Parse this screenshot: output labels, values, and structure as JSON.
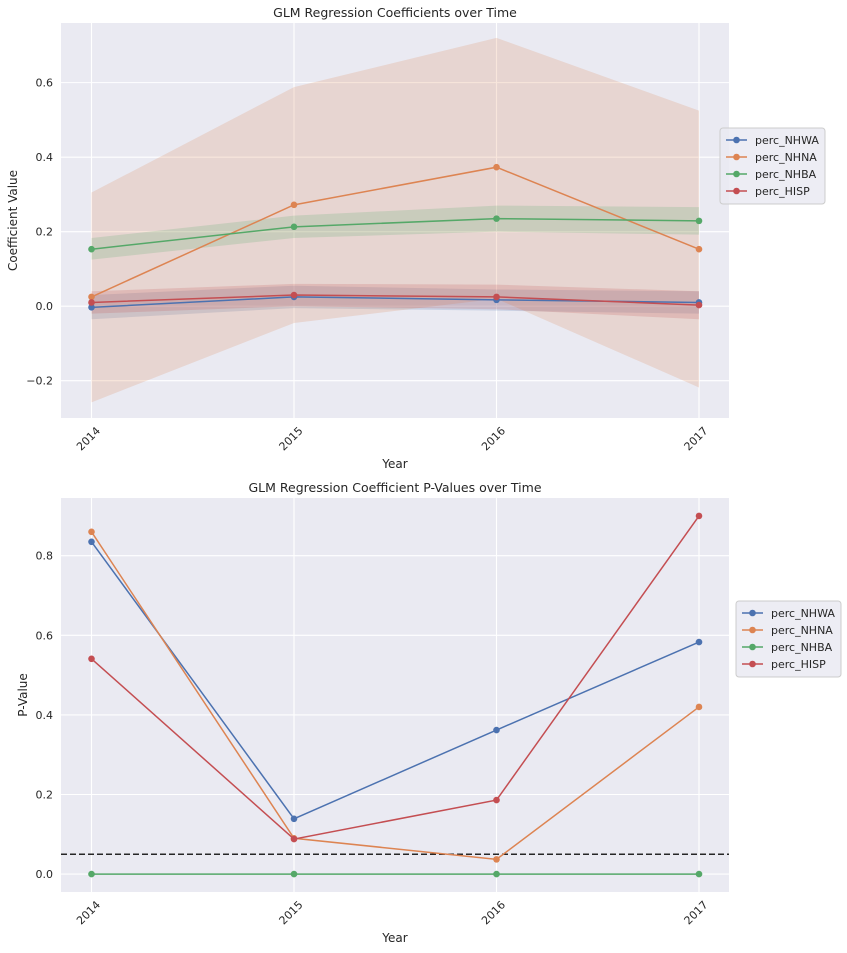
{
  "colors": {
    "background": "#eaeaf2",
    "grid": "#ffffff",
    "perc_NHWA": "#4c72b0",
    "perc_NHNA": "#dd8452",
    "perc_NHBA": "#55a868",
    "perc_HISP": "#c44e52",
    "threshold": "#262626"
  },
  "chart_data": [
    {
      "type": "line",
      "title": "GLM Regression Coefficients over Time",
      "xlabel": "Year",
      "ylabel": "Coefficient Value",
      "categories": [
        "2014",
        "2015",
        "2016",
        "2017"
      ],
      "ylim": [
        -0.3,
        0.76
      ],
      "yticks": [
        -0.2,
        0.0,
        0.2,
        0.4,
        0.6
      ],
      "ytick_labels": [
        "−0.2",
        "0.0",
        "0.2",
        "0.4",
        "0.6"
      ],
      "grid": true,
      "legend_position": "right",
      "series": [
        {
          "name": "perc_NHWA",
          "values": [
            -0.003,
            0.025,
            0.017,
            0.01
          ],
          "lower": [
            -0.035,
            -0.005,
            -0.012,
            -0.02
          ],
          "upper": [
            0.03,
            0.055,
            0.045,
            0.04
          ]
        },
        {
          "name": "perc_NHNA",
          "values": [
            0.025,
            0.272,
            0.373,
            0.153
          ],
          "lower": [
            -0.258,
            -0.045,
            0.02,
            -0.218
          ],
          "upper": [
            0.305,
            0.588,
            0.72,
            0.525
          ]
        },
        {
          "name": "perc_NHBA",
          "values": [
            0.153,
            0.213,
            0.235,
            0.229
          ],
          "lower": [
            0.125,
            0.183,
            0.2,
            0.192
          ],
          "upper": [
            0.183,
            0.243,
            0.27,
            0.266
          ]
        },
        {
          "name": "perc_HISP",
          "values": [
            0.01,
            0.03,
            0.025,
            0.003
          ],
          "lower": [
            -0.02,
            0.0,
            -0.008,
            -0.035
          ],
          "upper": [
            0.04,
            0.06,
            0.058,
            0.04
          ]
        }
      ]
    },
    {
      "type": "line",
      "title": "GLM Regression Coefficient P-Values over Time",
      "xlabel": "Year",
      "ylabel": "P-Value",
      "categories": [
        "2014",
        "2015",
        "2016",
        "2017"
      ],
      "ylim": [
        -0.045,
        0.945
      ],
      "yticks": [
        0.0,
        0.2,
        0.4,
        0.6,
        0.8
      ],
      "ytick_labels": [
        "0.0",
        "0.2",
        "0.4",
        "0.6",
        "0.8"
      ],
      "grid": true,
      "legend_position": "right",
      "threshold": 0.05,
      "series": [
        {
          "name": "perc_NHWA",
          "values": [
            0.835,
            0.139,
            0.362,
            0.583
          ]
        },
        {
          "name": "perc_NHNA",
          "values": [
            0.86,
            0.09,
            0.037,
            0.42
          ]
        },
        {
          "name": "perc_NHBA",
          "values": [
            0.0,
            0.0,
            0.0,
            0.0
          ]
        },
        {
          "name": "perc_HISP",
          "values": [
            0.541,
            0.088,
            0.186,
            0.9
          ]
        }
      ]
    }
  ]
}
